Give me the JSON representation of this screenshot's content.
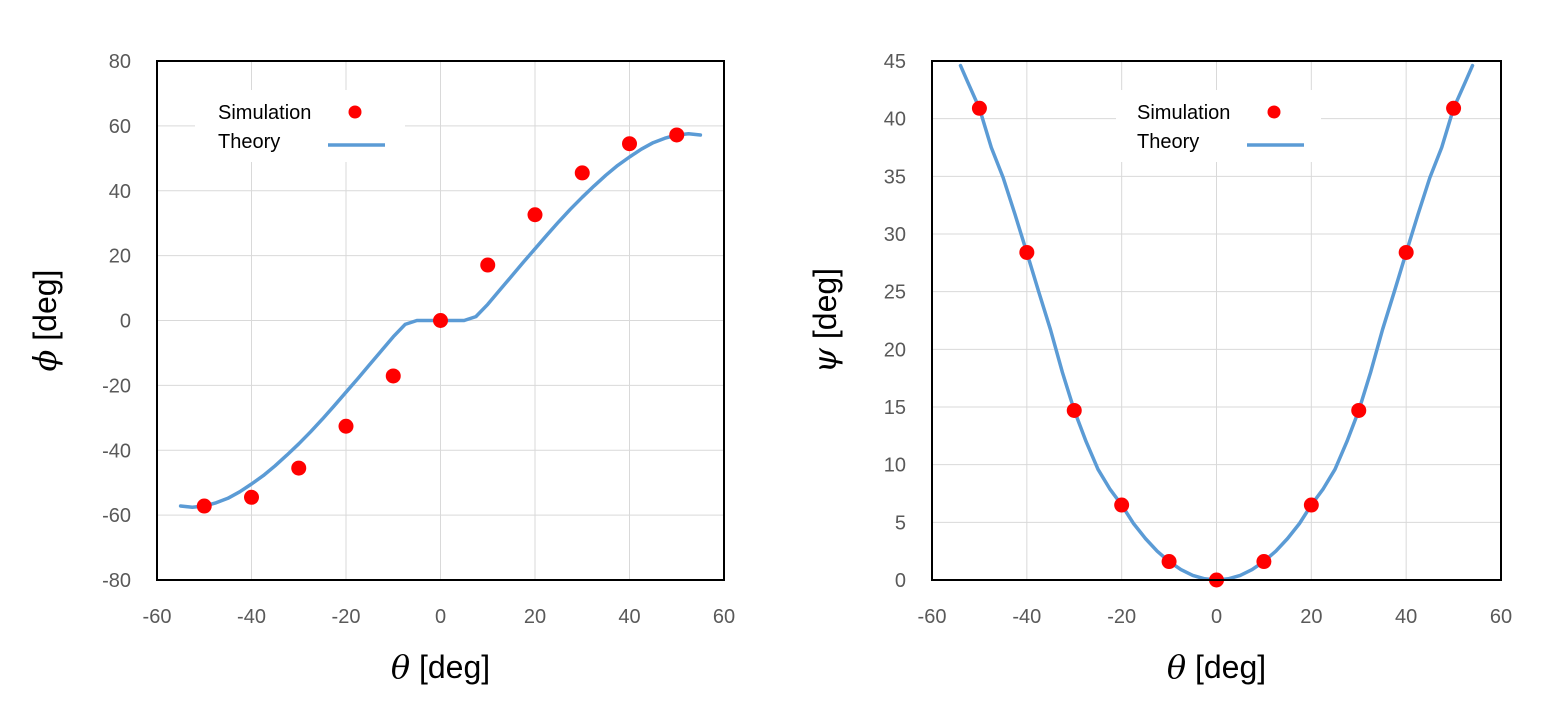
{
  "colors": {
    "simulation": "#ff0000",
    "theory": "#5b9bd5",
    "grid": "#d9d9d9",
    "frame": "#000000",
    "tick_text": "#595959"
  },
  "chart_data": [
    {
      "type": "scatter",
      "xlabel_symbol": "θ",
      "xlabel_unit": "[deg]",
      "ylabel_symbol": "ϕ",
      "ylabel_unit": "[deg]",
      "xlim": [
        -60,
        60
      ],
      "ylim": [
        -80,
        80
      ],
      "xticks": [
        -60,
        -40,
        -20,
        0,
        20,
        40,
        60
      ],
      "yticks": [
        -80,
        -60,
        -40,
        -20,
        0,
        20,
        40,
        60,
        80
      ],
      "grid": true,
      "legend_position": "top-left",
      "series": [
        {
          "name": "Simulation",
          "kind": "markers",
          "x": [
            -50,
            -40,
            -30,
            -20,
            -10,
            0,
            10,
            20,
            30,
            40,
            50
          ],
          "y": [
            -57.2,
            -54.5,
            -45.5,
            -32.6,
            -17.1,
            0,
            17.1,
            32.6,
            45.5,
            54.5,
            57.2
          ]
        },
        {
          "name": "Theory",
          "kind": "line",
          "x": [
            -55,
            -52.5,
            -50,
            -47.5,
            -45,
            -42.5,
            -40,
            -37.5,
            -35,
            -32.5,
            -30,
            -27.5,
            -25,
            -22.5,
            -20,
            -17.5,
            -15,
            -12.5,
            -10,
            -7.5,
            -5,
            -2.5,
            0,
            2.5,
            5,
            7.5,
            10,
            12.5,
            15,
            17.5,
            20,
            22.5,
            25,
            27.5,
            30,
            32.5,
            35,
            37.5,
            40,
            42.5,
            45,
            47.5,
            50,
            52.5,
            55
          ],
          "y": [
            -57.2,
            -57.6,
            -57.2,
            -56.2,
            -54.8,
            -52.8,
            -50.4,
            -47.8,
            -44.8,
            -41.5,
            -38,
            -34.3,
            -30.4,
            -26.3,
            -22.1,
            -17.9,
            -13.6,
            -9.3,
            -5,
            -1.2,
            0,
            0,
            0,
            0,
            0,
            1.2,
            5,
            9.3,
            13.6,
            17.9,
            22.1,
            26.3,
            30.4,
            34.3,
            38,
            41.5,
            44.8,
            47.8,
            50.4,
            52.8,
            54.8,
            56.2,
            57.2,
            57.6,
            57.2
          ]
        }
      ]
    },
    {
      "type": "scatter",
      "xlabel_symbol": "θ",
      "xlabel_unit": "[deg]",
      "ylabel_symbol": "ψ",
      "ylabel_unit": "[deg]",
      "xlim": [
        -60,
        60
      ],
      "ylim": [
        0,
        45
      ],
      "xticks": [
        -60,
        -40,
        -20,
        0,
        20,
        40,
        60
      ],
      "yticks": [
        0,
        5,
        10,
        15,
        20,
        25,
        30,
        35,
        40,
        45
      ],
      "grid": true,
      "legend_position": "top-center",
      "series": [
        {
          "name": "Simulation",
          "kind": "markers",
          "x": [
            -50,
            -40,
            -30,
            -20,
            -10,
            0,
            10,
            20,
            30,
            40,
            50
          ],
          "y": [
            40.9,
            28.4,
            14.7,
            6.5,
            1.6,
            0,
            1.6,
            6.5,
            14.7,
            28.4,
            40.9
          ]
        },
        {
          "name": "Theory",
          "kind": "line",
          "x": [
            -54,
            -52.5,
            -50,
            -47.5,
            -45,
            -42.5,
            -40,
            -37.5,
            -35,
            -32.5,
            -30,
            -27.5,
            -25,
            -22.5,
            -20,
            -17.5,
            -15,
            -12.5,
            -10,
            -7.5,
            -5,
            -2.5,
            0,
            2.5,
            5,
            7.5,
            10,
            12.5,
            15,
            17.5,
            20,
            22.5,
            25,
            27.5,
            30,
            32.5,
            35,
            37.5,
            40,
            42.5,
            45,
            47.5,
            50,
            52.5,
            54
          ],
          "y": [
            44.6,
            43.2,
            40.9,
            37.5,
            34.9,
            31.7,
            28.4,
            25,
            21.7,
            18,
            14.7,
            12,
            9.6,
            7.9,
            6.5,
            4.9,
            3.6,
            2.5,
            1.6,
            0.9,
            0.4,
            0.1,
            0,
            0.1,
            0.4,
            0.9,
            1.6,
            2.5,
            3.6,
            4.9,
            6.5,
            7.9,
            9.6,
            12,
            14.7,
            18,
            21.7,
            25,
            28.4,
            31.7,
            34.9,
            37.5,
            40.9,
            43.2,
            44.6
          ]
        }
      ]
    }
  ]
}
